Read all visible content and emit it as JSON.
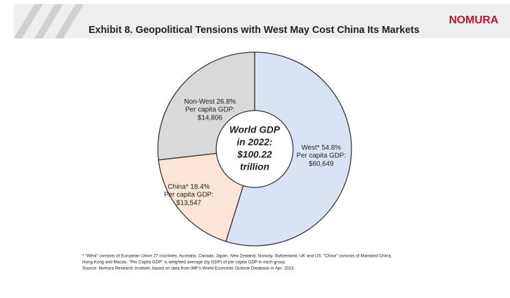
{
  "header": {
    "logo": "NOMURA"
  },
  "chart_data": {
    "type": "donut",
    "title": "Exhibit 8. Geopolitical Tensions with West May Cost China Its Markets",
    "categories": [
      "West*",
      "China*",
      "Non-West"
    ],
    "values": [
      54.8,
      18.4,
      26.8
    ],
    "value_labels": [
      "54.8%",
      "18.4%",
      "26.8%"
    ],
    "colors": [
      "#dae3f3",
      "#fbe5d6",
      "#d9d9d9"
    ],
    "slice_notes": [
      [
        "Per capita GDP:",
        "$60,649"
      ],
      [
        "Per capita GDP:",
        "$13,547"
      ],
      [
        "Per capita GDP:",
        "$14,806"
      ]
    ],
    "center_label": [
      "World GDP",
      "in 2022:",
      "$100.22",
      "trillion"
    ],
    "footnotes": [
      "* \"West\" consists of European Union 27 countries, Australia, Canada, Japan, New Zealand, Norway, Switzerland, UK and US. \"China\" consists of Mainland China,",
      "Hong Kong and Macao. \"Per Capita GDP\" is weighted average (by GDP) of per capita GDP in each group.",
      "Source: Nomura Research Institute, based on data from IMF's World Economic Outlook Database in Apr. 2023."
    ]
  }
}
